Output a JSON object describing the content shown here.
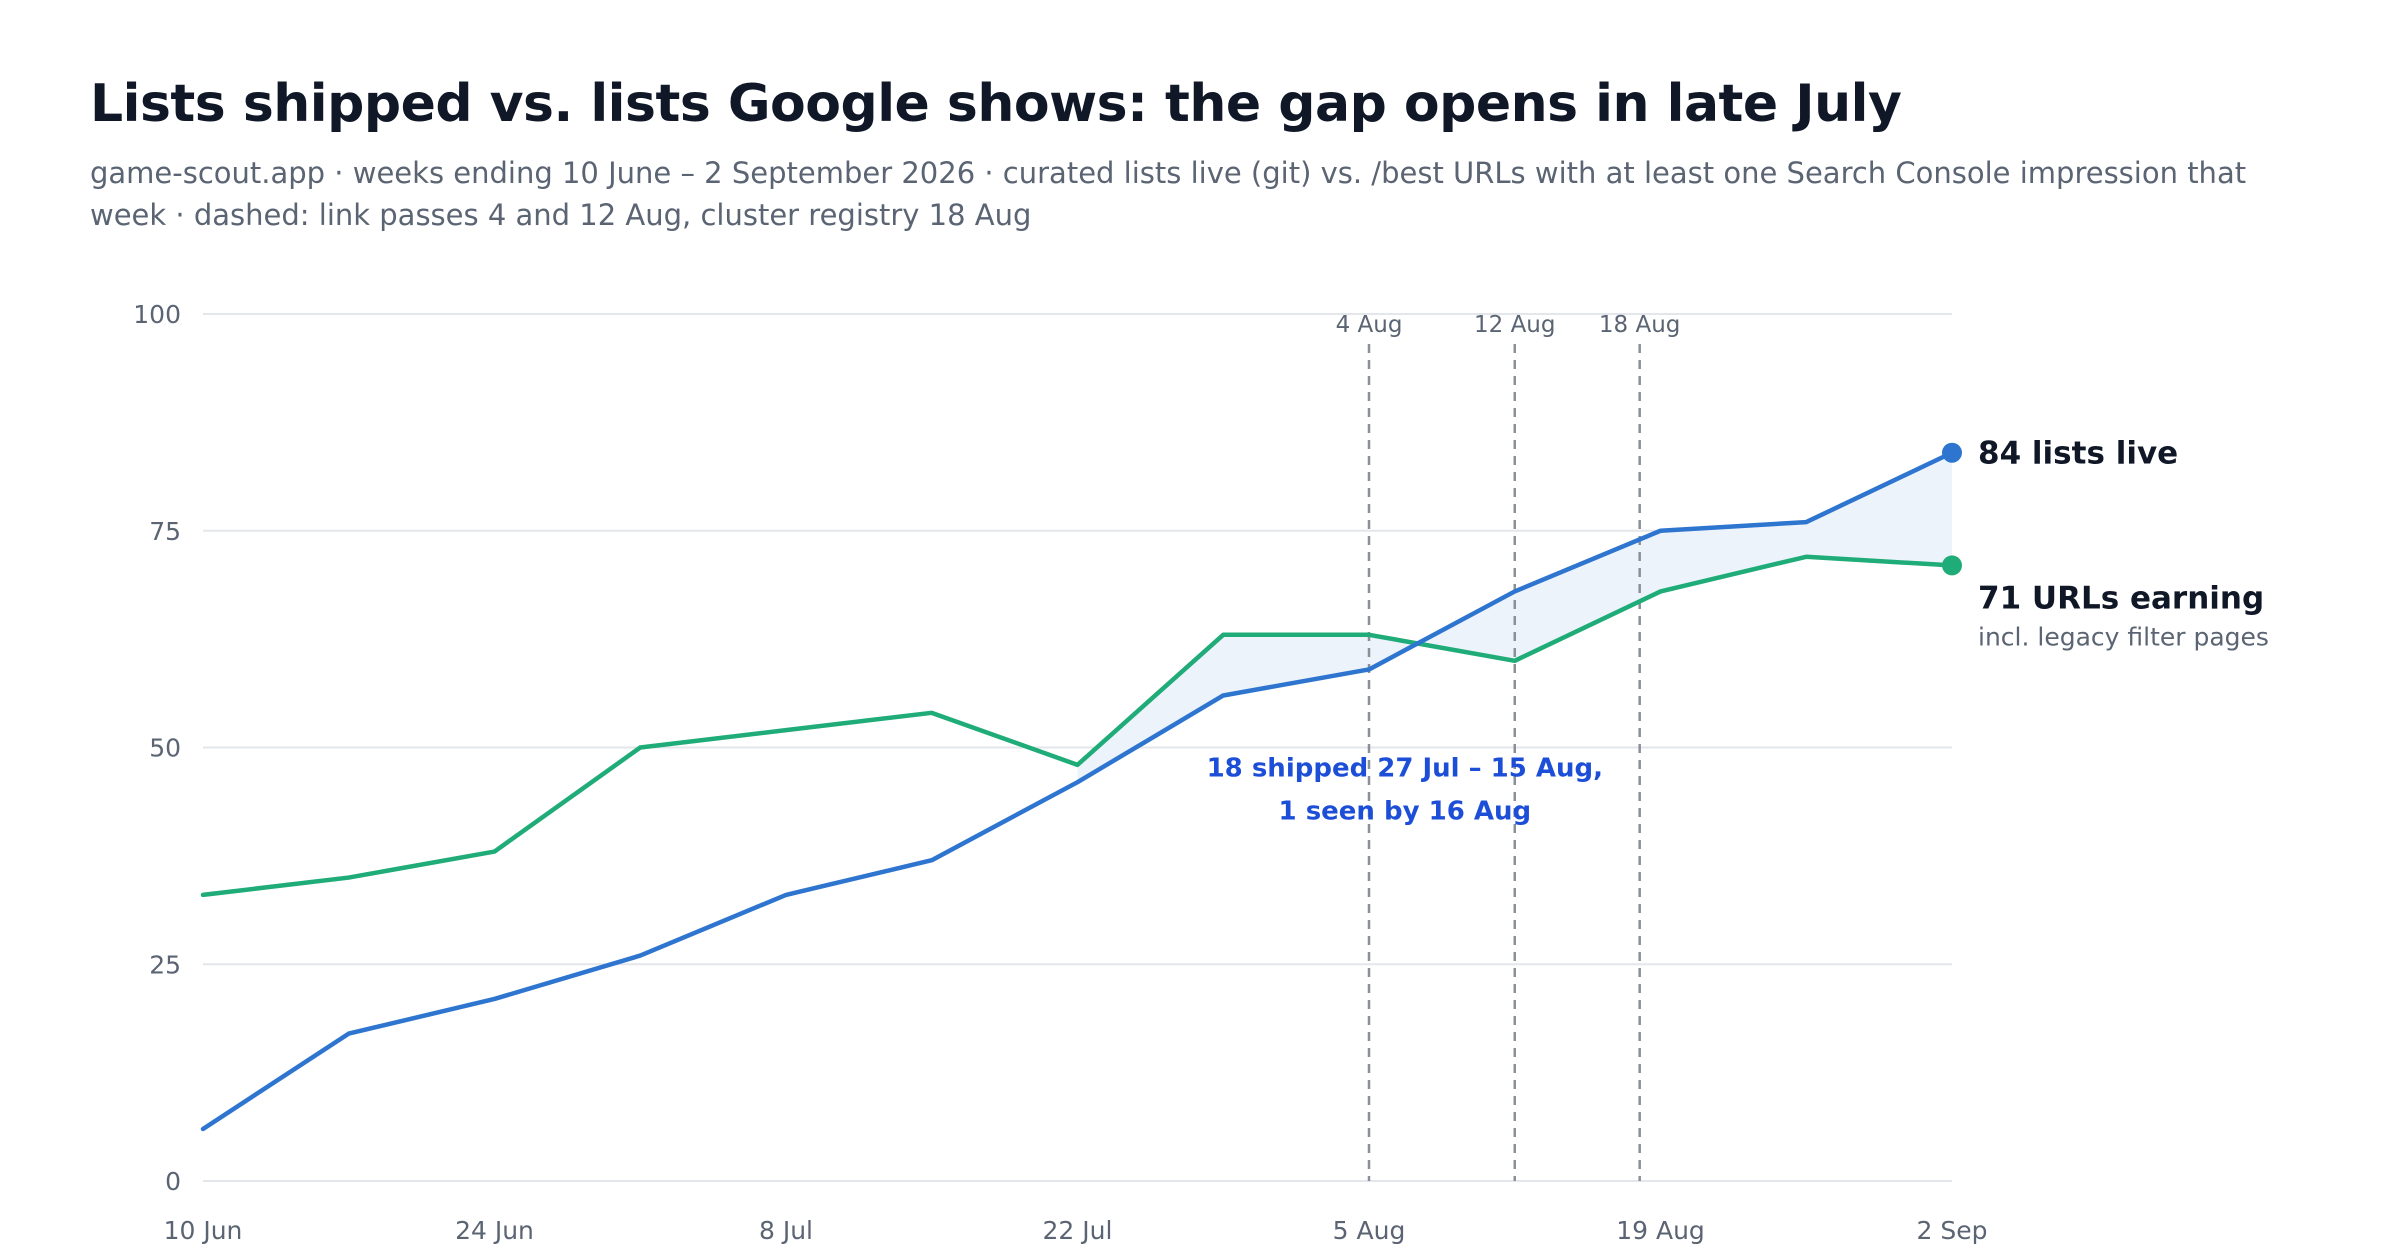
{
  "title": "Lists shipped vs. lists Google shows: the gap opens in late July",
  "subtitle": "game-scout.app · weeks ending 10 June – 2 September 2026 · curated lists live (git) vs. /best URLs with at least one Search Console impression that week · dashed: link passes 4 and 12 Aug, cluster registry 18 Aug",
  "colors": {
    "live": "#2e75d0",
    "earning": "#1fac78",
    "gap_fill": "#edf3fb",
    "annotation": "#1d4ed8"
  },
  "chart_data": {
    "type": "line",
    "x": [
      "2026-06-10",
      "2026-06-17",
      "2026-06-24",
      "2026-07-01",
      "2026-07-08",
      "2026-07-15",
      "2026-07-22",
      "2026-07-29",
      "2026-08-05",
      "2026-08-12",
      "2026-08-19",
      "2026-08-26",
      "2026-09-02"
    ],
    "x_tick_labels": [
      "10 Jun",
      "24 Jun",
      "8 Jul",
      "22 Jul",
      "5 Aug",
      "19 Aug",
      "2 Sep"
    ],
    "x_tick_dates": [
      "2026-06-10",
      "2026-06-24",
      "2026-07-08",
      "2026-07-22",
      "2026-08-05",
      "2026-08-19",
      "2026-09-02"
    ],
    "y_ticks": [
      0,
      25,
      50,
      75,
      100
    ],
    "ylim": [
      0,
      100
    ],
    "grid": true,
    "series": [
      {
        "key": "live",
        "values": [
          6,
          17,
          21,
          26,
          33,
          37,
          46,
          56,
          59,
          68,
          75,
          76,
          84
        ]
      },
      {
        "key": "earning",
        "values": [
          33,
          35,
          38,
          50,
          52,
          54,
          48,
          63,
          63,
          60,
          68,
          72,
          71
        ]
      }
    ],
    "shaded_gap": {
      "from": "2026-07-22",
      "to": "2026-09-02",
      "between": [
        "live",
        "earning"
      ]
    },
    "events": [
      {
        "date": "2026-08-05",
        "label": "4 Aug"
      },
      {
        "date": "2026-08-12",
        "label": "12 Aug"
      },
      {
        "date": "2026-08-18",
        "label": "18 Aug"
      }
    ],
    "end_labels": {
      "live": {
        "text": "84 lists live"
      },
      "earning": {
        "text": "71 URLs earning",
        "sub": "incl. legacy filter pages"
      }
    },
    "annotation": {
      "lines": [
        "18 shipped 27 Jul – 15 Aug,",
        "1 seen by 16 Aug"
      ],
      "date": "2026-08-06",
      "y": 50
    }
  }
}
